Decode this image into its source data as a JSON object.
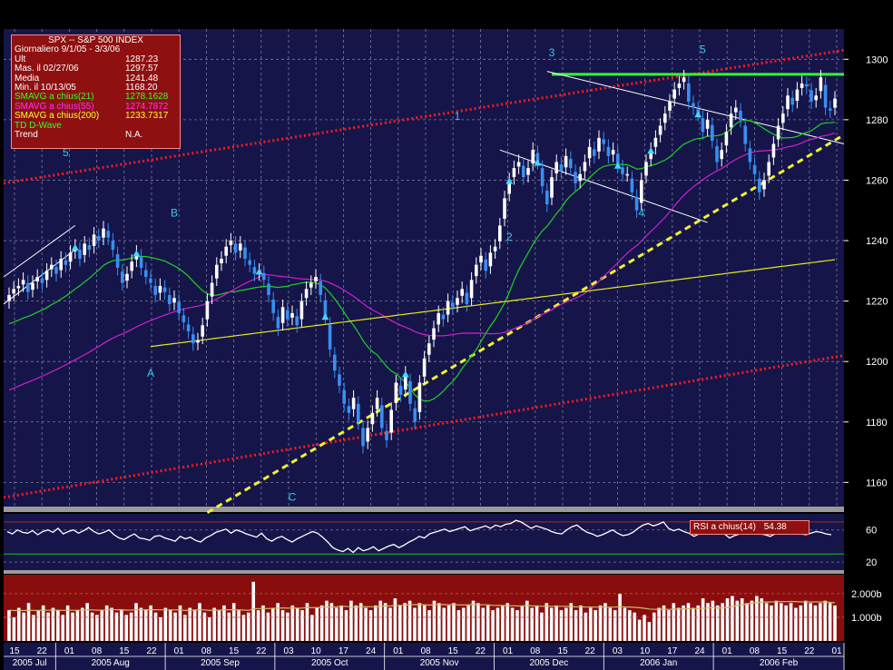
{
  "info_box": {
    "title": "SPX -- S&P 500 INDEX",
    "range": "Giornaliero 9/1/05 - 3/3/06",
    "rows": [
      {
        "label": "Ult",
        "value": "1287.23",
        "color": "#ffffff"
      },
      {
        "label": "Mas. il  02/27/06",
        "value": "1297.57",
        "color": "#ffffff"
      },
      {
        "label": "Media",
        "value": "1241.48",
        "color": "#ffffff"
      },
      {
        "label": "Min. il  10/13/05",
        "value": "1168.20",
        "color": "#ffffff"
      },
      {
        "label": "SMAVG a chius(21)",
        "value": "1278.1628",
        "color": "#33ff33"
      },
      {
        "label": "SMAVG a chius(55)",
        "value": "1274.7872",
        "color": "#ff33ff"
      },
      {
        "label": "SMAVG a chius(200)",
        "value": "1233.7317",
        "color": "#ffff33"
      },
      {
        "label": "TD D-Wave",
        "value": "",
        "color": "#33ff33"
      },
      {
        "label": "Trend",
        "value": "N.A.",
        "color": "#ffffff"
      }
    ]
  },
  "rsi_label": {
    "name": "RSI a chius(14)",
    "value": "54.38"
  },
  "colors": {
    "background": "#15154a",
    "price_up": "#ffffff",
    "price_down": "#3a8ef0",
    "sma21": "#1fd21f",
    "sma55": "#d020d0",
    "sma200": "#e6e61a",
    "channel": "#ff1a1a",
    "support": "#f2f230",
    "resistance": "#33ff33",
    "wave_label": "#33ccee",
    "volume_bg": "#8a0d0d"
  },
  "chart_data": [
    {
      "type": "line",
      "panel": "price",
      "title": "SPX -- S&P 500 INDEX",
      "yticks": [
        1160,
        1180,
        1200,
        1220,
        1240,
        1260,
        1280,
        1300
      ],
      "ylim": [
        1152,
        1310
      ],
      "grid": true,
      "x_ticks": [
        "15",
        "22",
        "01",
        "08",
        "15",
        "22",
        "01",
        "08",
        "15",
        "22",
        "03",
        "10",
        "17",
        "24",
        "01",
        "08",
        "15",
        "22",
        "01",
        "08",
        "15",
        "22",
        "03",
        "10",
        "17",
        "24",
        "01",
        "08",
        "15",
        "22",
        "01"
      ],
      "months": [
        "2005 Jul",
        "2005 Aug",
        "2005 Sep",
        "2005 Oct",
        "2005 Nov",
        "2005 Dec",
        "2006 Jan",
        "2006 Feb"
      ],
      "close": [
        1222,
        1224,
        1225,
        1227,
        1223,
        1226,
        1228,
        1226,
        1230,
        1232,
        1229,
        1234,
        1232,
        1236,
        1238,
        1234,
        1239,
        1237,
        1242,
        1240,
        1244,
        1241,
        1237,
        1231,
        1226,
        1229,
        1233,
        1236,
        1231,
        1228,
        1226,
        1222,
        1225,
        1223,
        1219,
        1221,
        1216,
        1213,
        1210,
        1206,
        1207,
        1212,
        1220,
        1226,
        1232,
        1234,
        1238,
        1240,
        1236,
        1239,
        1234,
        1232,
        1229,
        1230,
        1227,
        1222,
        1216,
        1211,
        1218,
        1214,
        1216,
        1212,
        1220,
        1224,
        1226,
        1228,
        1222,
        1215,
        1204,
        1197,
        1192,
        1186,
        1183,
        1188,
        1180,
        1172,
        1178,
        1183,
        1188,
        1178,
        1174,
        1184,
        1193,
        1189,
        1196,
        1186,
        1180,
        1193,
        1201,
        1206,
        1211,
        1216,
        1214,
        1220,
        1218,
        1221,
        1224,
        1219,
        1227,
        1232,
        1235,
        1230,
        1236,
        1238,
        1245,
        1254,
        1260,
        1264,
        1266,
        1261,
        1264,
        1270,
        1266,
        1258,
        1252,
        1261,
        1266,
        1263,
        1268,
        1264,
        1259,
        1262,
        1266,
        1271,
        1268,
        1274,
        1272,
        1268,
        1270,
        1265,
        1262,
        1262,
        1256,
        1250,
        1260,
        1266,
        1270,
        1274,
        1278,
        1282,
        1286,
        1290,
        1292,
        1294,
        1286,
        1284,
        1282,
        1276,
        1280,
        1273,
        1266,
        1270,
        1276,
        1282,
        1284,
        1280,
        1272,
        1266,
        1262,
        1256,
        1260,
        1266,
        1272,
        1278,
        1282,
        1288,
        1285,
        1290,
        1292,
        1291,
        1286,
        1288,
        1294,
        1284,
        1283,
        1287
      ]
    },
    {
      "type": "line",
      "panel": "rsi",
      "name": "RSI a chius(14)",
      "yticks": [
        20,
        60
      ],
      "ylim": [
        10,
        80
      ],
      "levels": [
        70,
        30
      ],
      "values": [
        58,
        55,
        60,
        57,
        56,
        59,
        54,
        58,
        60,
        57,
        62,
        55,
        58,
        60,
        56,
        59,
        63,
        58,
        55,
        57,
        60,
        54,
        50,
        48,
        52,
        55,
        50,
        49,
        47,
        52,
        53,
        50,
        48,
        46,
        52,
        49,
        51,
        47,
        45,
        50,
        53,
        57,
        59,
        61,
        56,
        60,
        58,
        55,
        53,
        51,
        56,
        49,
        46,
        50,
        52,
        48,
        45,
        49,
        52,
        55,
        58,
        56,
        51,
        45,
        38,
        35,
        33,
        37,
        32,
        38,
        34,
        36,
        39,
        34,
        37,
        40,
        42,
        38,
        41,
        45,
        48,
        52,
        50,
        55,
        57,
        59,
        61,
        58,
        60,
        62,
        64,
        59,
        61,
        63,
        65,
        62,
        66,
        64,
        67,
        68,
        72,
        70,
        66,
        62,
        65,
        63,
        61,
        58,
        56,
        55,
        60,
        64,
        66,
        61,
        57,
        55,
        52,
        54,
        57,
        60,
        56,
        53,
        54,
        57,
        62,
        66,
        68,
        65,
        67,
        70,
        62,
        59,
        61,
        58,
        56,
        52,
        55,
        58,
        56,
        59,
        57,
        55,
        50,
        53,
        55,
        57,
        60,
        58,
        55,
        54,
        52,
        55,
        58,
        61,
        59,
        57,
        55,
        54,
        56,
        58,
        57,
        55,
        54
      ]
    },
    {
      "type": "bar",
      "panel": "volume",
      "yticks": [
        "2.000b",
        "1.000b"
      ],
      "ylim": [
        0,
        2.8
      ],
      "values": [
        1.3,
        1.0,
        1.4,
        1.2,
        1.6,
        1.1,
        1.3,
        1.5,
        1.2,
        1.4,
        1.3,
        1.1,
        1.5,
        1.2,
        1.3,
        1.4,
        1.6,
        1.2,
        1.1,
        1.3,
        1.5,
        1.4,
        1.2,
        1.3,
        1.1,
        1.2,
        1.6,
        1.4,
        1.3,
        1.5,
        1.2,
        1.0,
        1.4,
        1.3,
        1.2,
        1.5,
        1.1,
        1.4,
        1.3,
        1.6,
        1.2,
        1.0,
        1.4,
        1.3,
        1.5,
        1.2,
        1.6,
        1.3,
        1.1,
        1.2,
        2.5,
        1.3,
        1.5,
        1.2,
        1.4,
        1.6,
        1.3,
        1.2,
        1.5,
        1.4,
        1.3,
        1.6,
        1.1,
        1.4,
        1.5,
        1.7,
        1.6,
        1.4,
        1.5,
        1.3,
        1.7,
        1.5,
        1.6,
        1.4,
        1.3,
        1.5,
        1.7,
        1.6,
        1.4,
        1.8,
        1.5,
        1.6,
        1.7,
        1.4,
        1.6,
        1.5,
        1.3,
        1.7,
        1.6,
        1.4,
        1.5,
        1.6,
        1.3,
        1.4,
        1.5,
        1.7,
        1.6,
        1.4,
        1.5,
        1.3,
        1.4,
        1.5,
        1.6,
        1.4,
        1.3,
        1.5,
        1.7,
        1.4,
        1.5,
        1.2,
        1.6,
        1.4,
        1.5,
        1.3,
        1.4,
        1.6,
        1.3,
        1.5,
        1.2,
        1.4,
        1.3,
        1.5,
        1.6,
        1.4,
        1.3,
        2.0,
        1.4,
        1.3,
        1.2,
        0.9,
        1.1,
        0.8,
        1.2,
        1.4,
        1.5,
        1.3,
        1.6,
        1.4,
        1.5,
        1.6,
        1.4,
        1.5,
        1.8,
        1.6,
        1.7,
        1.5,
        1.6,
        1.8,
        1.9,
        1.7,
        1.8,
        1.6,
        1.7,
        1.9,
        1.8,
        1.6,
        1.5,
        1.7,
        1.6,
        1.5,
        1.6,
        1.4,
        1.5,
        1.7,
        1.6,
        1.5,
        1.6,
        1.7,
        1.6,
        1.5
      ]
    }
  ],
  "wave_labels": [
    {
      "text": "5",
      "i": 12,
      "price": 1268
    },
    {
      "text": "B",
      "i": 35,
      "price": 1248
    },
    {
      "text": "A",
      "i": 30,
      "price": 1195
    },
    {
      "text": "C",
      "i": 60,
      "price": 1154
    },
    {
      "text": "1",
      "i": 95,
      "price": 1280
    },
    {
      "text": "2",
      "i": 106,
      "price": 1240
    },
    {
      "text": "3",
      "i": 115,
      "price": 1301
    },
    {
      "text": "4",
      "i": 134,
      "price": 1248
    },
    {
      "text": "5",
      "i": 147,
      "price": 1302
    }
  ]
}
